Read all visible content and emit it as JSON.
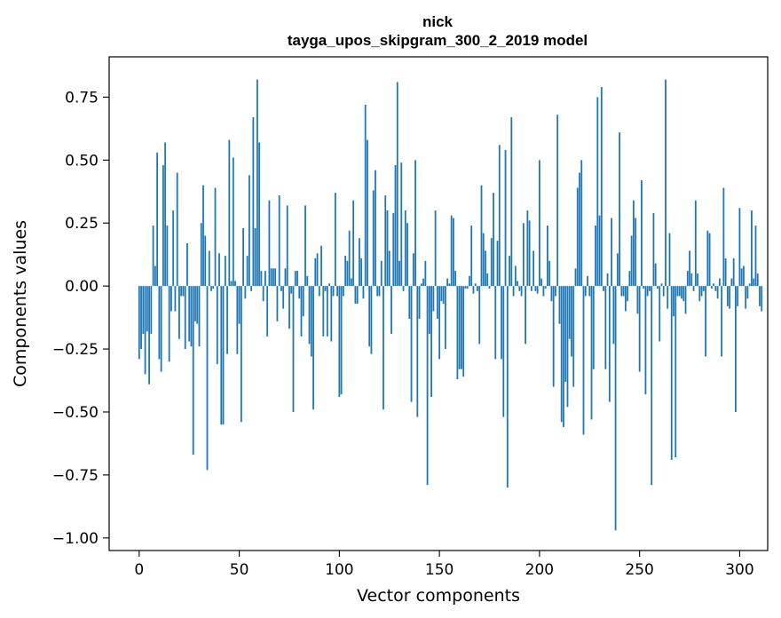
{
  "chart_data": {
    "type": "bar",
    "title": "nick",
    "subtitle": "tayga_upos_skipgram_300_2_2019 model",
    "xlabel": "Vector components",
    "ylabel": "Components values",
    "xlim": [
      -15,
      314
    ],
    "ylim": [
      -1.05,
      0.91
    ],
    "xticks": [
      0,
      50,
      100,
      150,
      200,
      250,
      300
    ],
    "yticks": [
      -1.0,
      -0.75,
      -0.5,
      -0.25,
      0.0,
      0.25,
      0.5,
      0.75
    ],
    "yticklabels": [
      "−1.00",
      "−0.75",
      "−0.50",
      "−0.25",
      "0.00",
      "0.25",
      "0.50",
      "0.75"
    ],
    "bar_color": "#1f77b4",
    "grid": false,
    "legend": "none",
    "values": [
      -0.29,
      -0.25,
      -0.19,
      -0.35,
      -0.18,
      -0.39,
      -0.19,
      0.24,
      0.08,
      0.53,
      -0.29,
      -0.34,
      0.48,
      0.57,
      0.24,
      -0.3,
      -0.1,
      0.3,
      -0.1,
      0.45,
      -0.21,
      -0.04,
      -0.04,
      -0.25,
      0.17,
      -0.22,
      -0.24,
      -0.67,
      -0.14,
      -0.15,
      -0.24,
      0.25,
      0.4,
      0.2,
      -0.73,
      0.14,
      -0.02,
      -0.01,
      0.39,
      -0.31,
      0.13,
      -0.55,
      -0.55,
      0.12,
      -0.27,
      0.58,
      0.02,
      0.51,
      0.02,
      -0.27,
      -0.15,
      -0.54,
      0.23,
      -0.05,
      0.12,
      0.44,
      -0.02,
      0.67,
      0.23,
      0.82,
      0.57,
      0.06,
      -0.06,
      0.06,
      -0.2,
      0.34,
      0.07,
      0.07,
      0.07,
      -0.14,
      0.36,
      -0.02,
      -0.09,
      0.07,
      0.32,
      -0.17,
      -0.03,
      -0.5,
      0.06,
      0.06,
      -0.05,
      -0.2,
      -0.12,
      0.32,
      0.04,
      -0.23,
      -0.28,
      -0.49,
      0.11,
      0.13,
      -0.04,
      0.16,
      -0.2,
      -0.02,
      -0.2,
      0.01,
      -0.22,
      -0.04,
      0.37,
      -0.04,
      -0.44,
      -0.43,
      -0.04,
      0.12,
      0.1,
      0.22,
      0.03,
      0.34,
      -0.07,
      -0.07,
      0.19,
      0.11,
      -0.05,
      0.72,
      0.58,
      -0.24,
      -0.27,
      0.38,
      0.46,
      -0.04,
      -0.04,
      0.1,
      -0.49,
      0.36,
      0.3,
      0.14,
      -0.19,
      0.29,
      0.48,
      0.81,
      0.1,
      0.49,
      -0.02,
      0.3,
      0.25,
      -0.13,
      -0.46,
      0.13,
      0.5,
      -0.52,
      -0.13,
      0.01,
      0.03,
      0.1,
      -0.79,
      -0.19,
      -0.44,
      -0.1,
      0.3,
      -0.13,
      -0.29,
      -0.06,
      -0.07,
      -0.25,
      0.03,
      0.01,
      0.28,
      0.27,
      0.06,
      -0.37,
      -0.33,
      -0.33,
      -0.36,
      -0.01,
      -0.01,
      0.04,
      0.24,
      -0.03,
      0.01,
      -0.02,
      -0.23,
      0.4,
      0.21,
      0.14,
      0.05,
      -0.01,
      0.19,
      0.37,
      -0.29,
      0.18,
      0.56,
      -0.29,
      -0.52,
      0.54,
      -0.8,
      0.12,
      0.67,
      -0.04,
      0.08,
      0.02,
      -0.02,
      -0.04,
      0.25,
      -0.23,
      0.3,
      0.26,
      -0.02,
      0.14,
      -0.02,
      -0.03,
      0.5,
      0.03,
      -0.04,
      -0.01,
      0.24,
      0.1,
      -0.06,
      -0.4,
      -0.04,
      0.68,
      -0.15,
      -0.54,
      -0.56,
      -0.38,
      -0.48,
      -0.21,
      -0.28,
      -0.4,
      0.07,
      0.39,
      0.45,
      0.5,
      -0.59,
      -0.04,
      0.04,
      -0.04,
      -0.53,
      -0.33,
      0.24,
      0.75,
      0.28,
      0.79,
      -0.02,
      -0.33,
      0.05,
      -0.46,
      0.27,
      -0.23,
      -0.97,
      0.13,
      0.61,
      -0.04,
      -0.04,
      -0.1,
      -0.06,
      0.06,
      0.2,
      0.34,
      0.27,
      -0.11,
      -0.34,
      0.42,
      -0.01,
      -0.43,
      -0.04,
      -0.02,
      -0.79,
      0.29,
      0.09,
      -0.01,
      -0.22,
      0.01,
      -0.04,
      0.82,
      -0.09,
      0.21,
      -0.69,
      -0.12,
      -0.68,
      -0.04,
      -0.04,
      -0.05,
      -0.06,
      -0.11,
      0.06,
      0.14,
      0.05,
      -0.02,
      0.34,
      0.05,
      -0.06,
      -0.04,
      -0.02,
      -0.28,
      0.22,
      0.21,
      -0.01,
      0.01,
      -0.02,
      -0.05,
      0.03,
      -0.28,
      0.39,
      0.11,
      -0.08,
      -0.09,
      0.03,
      0.11,
      -0.5,
      -0.08,
      0.31,
      0.07,
      0.08,
      -0.09,
      -0.05,
      0.01,
      0.3,
      0.03,
      0.24,
      0.05,
      -0.08,
      -0.1
    ]
  }
}
